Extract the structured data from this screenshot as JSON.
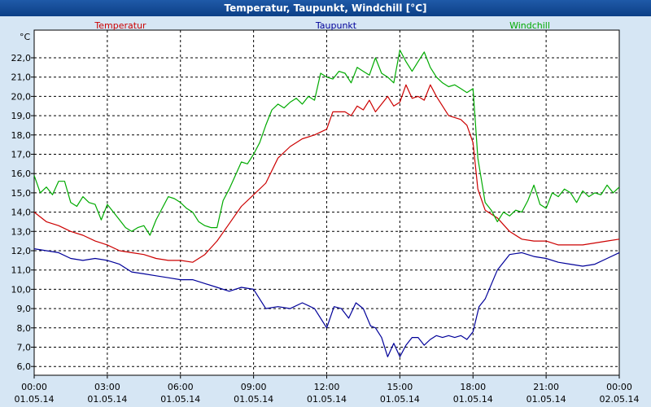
{
  "window": {
    "title": "Temperatur, Taupunkt, Windchill [°C]"
  },
  "chart_data": {
    "type": "line",
    "title": "Temperatur, Taupunkt, Windchill [°C]",
    "ylabel": "°C",
    "ylim": [
      5.5,
      23
    ],
    "yticks": [
      "22,0",
      "21,0",
      "20,0",
      "19,0",
      "18,0",
      "17,0",
      "16,0",
      "15,0",
      "14,0",
      "13,0",
      "12,0",
      "11,0",
      "10,0",
      "9,0",
      "8,0",
      "7,0",
      "6,0"
    ],
    "xlim_hours": [
      0,
      24
    ],
    "xticks": [
      {
        "time": "00:00",
        "date": "01.05.14"
      },
      {
        "time": "03:00",
        "date": "01.05.14"
      },
      {
        "time": "06:00",
        "date": "01.05.14"
      },
      {
        "time": "09:00",
        "date": "01.05.14"
      },
      {
        "time": "12:00",
        "date": "01.05.14"
      },
      {
        "time": "15:00",
        "date": "01.05.14"
      },
      {
        "time": "18:00",
        "date": "01.05.14"
      },
      {
        "time": "21:00",
        "date": "01.05.14"
      },
      {
        "time": "00:00",
        "date": "02.05.14"
      }
    ],
    "grid": true,
    "legend_position": "top",
    "series": [
      {
        "name": "Temperatur",
        "color": "#cc0000",
        "x": [
          0,
          0.5,
          1,
          1.5,
          2,
          2.5,
          3,
          3.5,
          4,
          4.5,
          5,
          5.5,
          6,
          6.5,
          7,
          7.5,
          8,
          8.5,
          9,
          9.5,
          10,
          10.5,
          11,
          11.5,
          12,
          12.25,
          12.5,
          12.75,
          13,
          13.25,
          13.5,
          13.75,
          14,
          14.25,
          14.5,
          14.75,
          15,
          15.25,
          15.5,
          15.75,
          16,
          16.25,
          16.5,
          17,
          17.5,
          17.75,
          18,
          18.2,
          18.5,
          19,
          19.5,
          20,
          20.5,
          21,
          21.5,
          22,
          22.5,
          23,
          23.5,
          24
        ],
        "y": [
          14.0,
          13.5,
          13.3,
          13.0,
          12.8,
          12.5,
          12.3,
          12.0,
          11.9,
          11.8,
          11.6,
          11.5,
          11.5,
          11.4,
          11.8,
          12.5,
          13.4,
          14.3,
          14.9,
          15.5,
          16.8,
          17.4,
          17.8,
          18.0,
          18.3,
          19.2,
          19.2,
          19.2,
          19.0,
          19.5,
          19.3,
          19.8,
          19.2,
          19.6,
          20.0,
          19.5,
          19.7,
          20.6,
          19.9,
          20.0,
          19.8,
          20.6,
          20.0,
          19.0,
          18.8,
          18.5,
          17.6,
          15.2,
          14.1,
          13.7,
          13.0,
          12.6,
          12.5,
          12.5,
          12.3,
          12.3,
          12.3,
          12.4,
          12.5,
          12.6
        ]
      },
      {
        "name": "Taupunkt",
        "color": "#000099",
        "x": [
          0,
          0.5,
          1,
          1.5,
          2,
          2.5,
          3,
          3.5,
          4,
          4.5,
          5,
          5.5,
          6,
          6.5,
          7,
          7.5,
          8,
          8.5,
          9,
          9.5,
          10,
          10.5,
          11,
          11.5,
          12,
          12.3,
          12.6,
          12.9,
          13.2,
          13.5,
          13.8,
          14,
          14.25,
          14.5,
          14.75,
          15,
          15.25,
          15.5,
          15.75,
          16,
          16.25,
          16.5,
          16.75,
          17,
          17.25,
          17.5,
          17.75,
          18,
          18.25,
          18.5,
          19,
          19.5,
          20,
          20.5,
          21,
          21.5,
          22,
          22.5,
          23,
          23.5,
          24
        ],
        "y": [
          12.1,
          12.0,
          11.9,
          11.6,
          11.5,
          11.6,
          11.5,
          11.3,
          10.9,
          10.8,
          10.7,
          10.6,
          10.5,
          10.5,
          10.3,
          10.1,
          9.9,
          10.1,
          10.0,
          9.0,
          9.1,
          9.0,
          9.3,
          9.0,
          8.0,
          9.1,
          9.0,
          8.5,
          9.3,
          9.0,
          8.1,
          8.0,
          7.5,
          6.5,
          7.2,
          6.5,
          7.1,
          7.5,
          7.5,
          7.1,
          7.4,
          7.6,
          7.5,
          7.6,
          7.5,
          7.6,
          7.4,
          7.8,
          9.1,
          9.5,
          11.0,
          11.8,
          11.9,
          11.7,
          11.6,
          11.4,
          11.3,
          11.2,
          11.3,
          11.6,
          11.9
        ]
      },
      {
        "name": "Windchill",
        "color": "#00aa00",
        "x": [
          0,
          0.25,
          0.5,
          0.75,
          1,
          1.25,
          1.5,
          1.75,
          2,
          2.25,
          2.5,
          2.75,
          3,
          3.25,
          3.5,
          3.75,
          4,
          4.25,
          4.5,
          4.75,
          5,
          5.25,
          5.5,
          5.75,
          6,
          6.25,
          6.5,
          6.75,
          7,
          7.25,
          7.5,
          7.75,
          8,
          8.25,
          8.5,
          8.75,
          9,
          9.25,
          9.5,
          9.75,
          10,
          10.25,
          10.5,
          10.75,
          11,
          11.25,
          11.5,
          11.75,
          12,
          12.25,
          12.5,
          12.75,
          13,
          13.25,
          13.5,
          13.75,
          14,
          14.25,
          14.5,
          14.75,
          15,
          15.25,
          15.5,
          15.75,
          16,
          16.25,
          16.5,
          16.75,
          17,
          17.25,
          17.5,
          17.75,
          18,
          18.2,
          18.5,
          18.75,
          19,
          19.25,
          19.5,
          19.75,
          20,
          20.25,
          20.5,
          20.75,
          21,
          21.25,
          21.5,
          21.75,
          22,
          22.25,
          22.5,
          22.75,
          23,
          23.25,
          23.5,
          23.75,
          24
        ],
        "y": [
          15.9,
          15.0,
          15.3,
          14.9,
          15.6,
          15.6,
          14.5,
          14.3,
          14.8,
          14.5,
          14.4,
          13.6,
          14.4,
          14.0,
          13.6,
          13.2,
          13.0,
          13.2,
          13.3,
          12.8,
          13.6,
          14.2,
          14.8,
          14.7,
          14.5,
          14.2,
          14.0,
          13.5,
          13.3,
          13.2,
          13.2,
          14.6,
          15.2,
          15.9,
          16.6,
          16.5,
          17.0,
          17.6,
          18.5,
          19.3,
          19.6,
          19.4,
          19.7,
          19.9,
          19.6,
          20.0,
          19.8,
          21.2,
          21.0,
          20.9,
          21.3,
          21.2,
          20.7,
          21.5,
          21.3,
          21.1,
          22.0,
          21.2,
          21.0,
          20.7,
          22.4,
          21.8,
          21.3,
          21.8,
          22.3,
          21.5,
          21.0,
          20.7,
          20.5,
          20.6,
          20.4,
          20.2,
          20.4,
          16.8,
          14.5,
          14.1,
          13.5,
          14.0,
          13.8,
          14.1,
          14.0,
          14.6,
          15.4,
          14.4,
          14.2,
          15.0,
          14.8,
          15.2,
          15.0,
          14.5,
          15.1,
          14.8,
          15.0,
          14.9,
          15.4,
          15.0,
          15.3
        ]
      }
    ]
  }
}
